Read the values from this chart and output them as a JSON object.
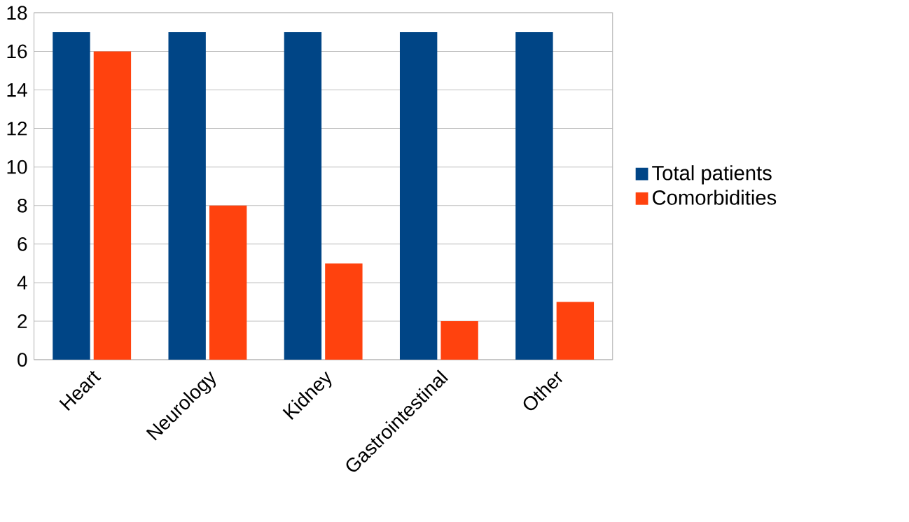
{
  "chart_data": {
    "type": "bar",
    "categories": [
      "Heart",
      "Neurology",
      "Kidney",
      "Gastrointestinal",
      "Other"
    ],
    "series": [
      {
        "name": "Total patients",
        "color": "#004586",
        "values": [
          17,
          17,
          17,
          17,
          17
        ]
      },
      {
        "name": "Comorbidities",
        "color": "#ff420e",
        "values": [
          16,
          8,
          5,
          2,
          3
        ]
      }
    ],
    "ylim": [
      0,
      18
    ],
    "yticks": [
      0,
      2,
      4,
      6,
      8,
      10,
      12,
      14,
      16,
      18
    ],
    "grid": "y",
    "legend": "right"
  }
}
